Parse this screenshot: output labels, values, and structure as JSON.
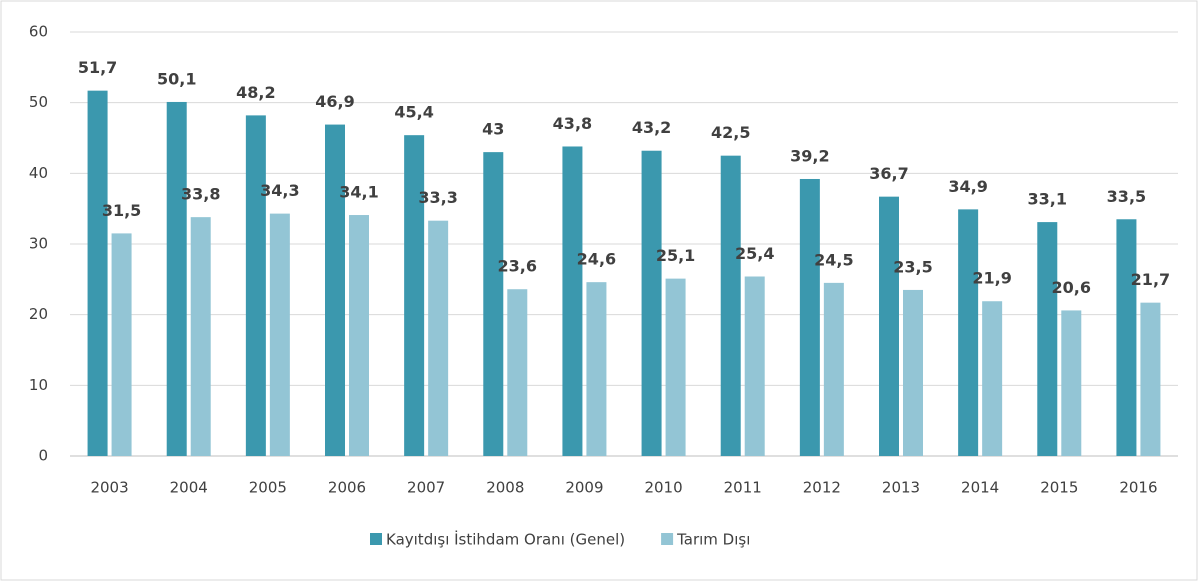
{
  "chart_data": {
    "type": "bar",
    "categories": [
      "2003",
      "2004",
      "2005",
      "2006",
      "2007",
      "2008",
      "2009",
      "2010",
      "2011",
      "2012",
      "2013",
      "2014",
      "2015",
      "2016"
    ],
    "series": [
      {
        "name": "Kayıtdışı İstihdam Oranı (Genel)",
        "color": "#3b98ae",
        "values": [
          51.7,
          50.1,
          48.2,
          46.9,
          45.4,
          43,
          43.8,
          43.2,
          42.5,
          39.2,
          36.7,
          34.9,
          33.1,
          33.5
        ],
        "value_labels": [
          "51,7",
          "50,1",
          "48,2",
          "46,9",
          "45,4",
          "43",
          "43,8",
          "43,2",
          "42,5",
          "39,2",
          "36,7",
          "34,9",
          "33,1",
          "33,5"
        ]
      },
      {
        "name": "Tarım Dışı",
        "color": "#93c5d5",
        "values": [
          31.5,
          33.8,
          34.3,
          34.1,
          33.3,
          23.6,
          24.6,
          25.1,
          25.4,
          24.5,
          23.5,
          21.9,
          20.6,
          21.7
        ],
        "value_labels": [
          "31,5",
          "33,8",
          "34,3",
          "34,1",
          "33,3",
          "23,6",
          "24,6",
          "25,1",
          "25,4",
          "24,5",
          "23,5",
          "21,9",
          "20,6",
          "21,7"
        ]
      }
    ],
    "ylim": [
      0,
      60
    ],
    "yticks": [
      0,
      10,
      20,
      30,
      40,
      50,
      60
    ],
    "grid": true,
    "legend": "bottom"
  }
}
